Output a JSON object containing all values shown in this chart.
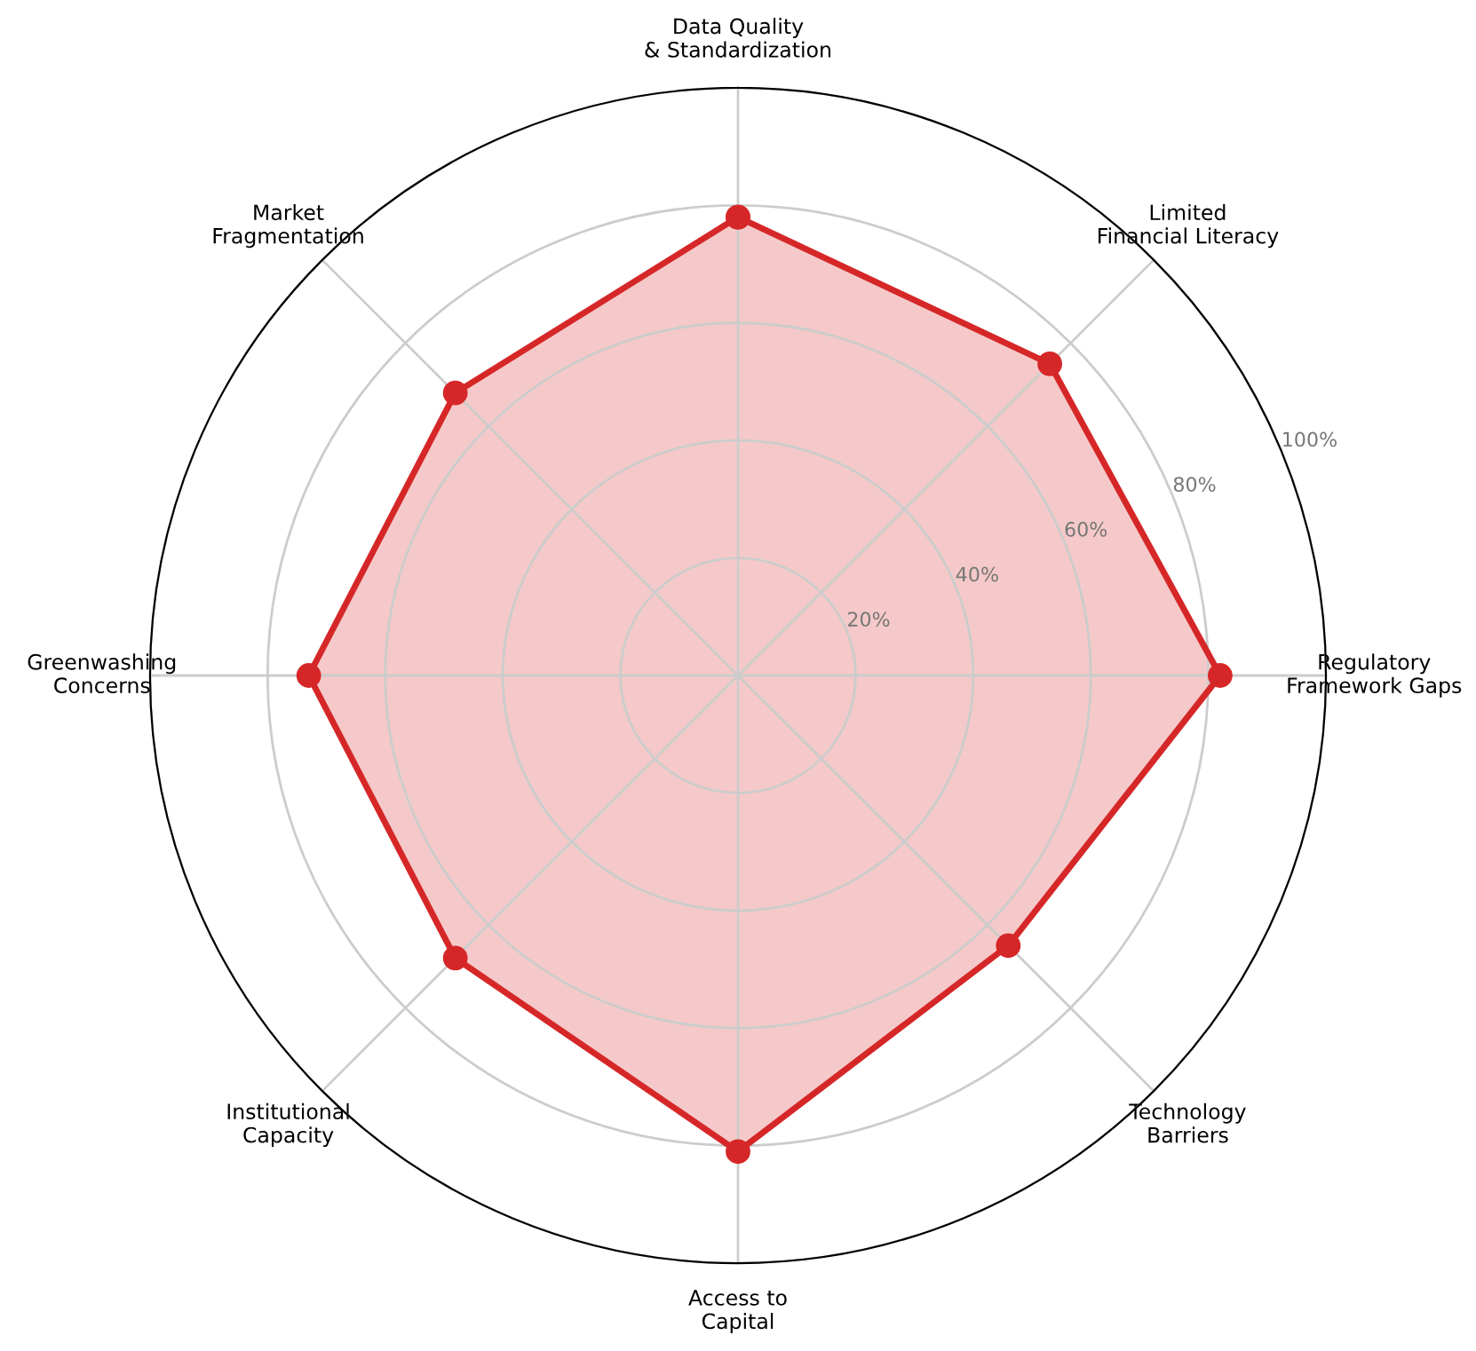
{
  "chart_data": {
    "type": "radar",
    "categories": [
      "Data Quality\n& Standardization",
      "Limited\nFinancial Literacy",
      "Regulatory\nFramework Gaps",
      "Technology\nBarriers",
      "Access to\nCapital",
      "Institutional\nCapacity",
      "Greenwashing\nConcerns",
      "Market\nFragmentation"
    ],
    "series": [
      {
        "color": "#d62728",
        "values": [
          78,
          75,
          82,
          65,
          81,
          68,
          73,
          68
        ]
      }
    ],
    "ylim": [
      0,
      100
    ],
    "yticks": [
      {
        "value": 20,
        "label": "20%"
      },
      {
        "value": 40,
        "label": "40%"
      },
      {
        "value": 60,
        "label": "60%"
      },
      {
        "value": 80,
        "label": "80%"
      },
      {
        "value": 100,
        "label": "100%"
      }
    ],
    "grid": true,
    "marker": "circle",
    "line_style": "solid"
  }
}
